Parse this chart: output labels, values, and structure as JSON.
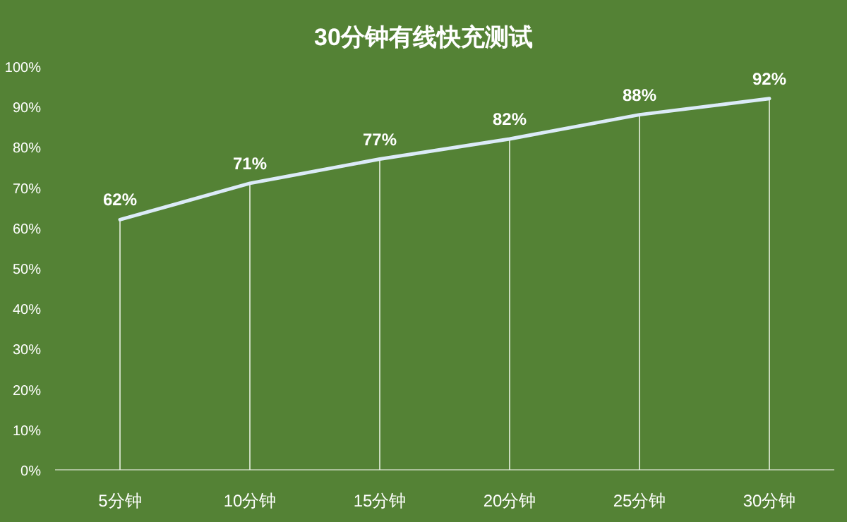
{
  "chart_data": {
    "type": "line",
    "title": "30分钟有线快充测试",
    "categories": [
      "5分钟",
      "10分钟",
      "15分钟",
      "20分钟",
      "25分钟",
      "30分钟"
    ],
    "series": [
      {
        "color": "#dcebf8",
        "values": [
          62,
          71,
          77,
          82,
          88,
          92
        ],
        "value_labels": [
          "62%",
          "71%",
          "77%",
          "82%",
          "88%",
          "92%"
        ]
      }
    ],
    "ylim": [
      0,
      100
    ],
    "yticks": [
      {
        "value": 0,
        "label": "0%"
      },
      {
        "value": 10,
        "label": "10%"
      },
      {
        "value": 20,
        "label": "20%"
      },
      {
        "value": 30,
        "label": "30%"
      },
      {
        "value": 40,
        "label": "40%"
      },
      {
        "value": 50,
        "label": "50%"
      },
      {
        "value": 60,
        "label": "60%"
      },
      {
        "value": 70,
        "label": "70%"
      },
      {
        "value": 80,
        "label": "80%"
      },
      {
        "value": 90,
        "label": "90%"
      },
      {
        "value": 100,
        "label": "100%"
      }
    ],
    "grid": "x",
    "marker": "none",
    "line_style": "solid"
  }
}
